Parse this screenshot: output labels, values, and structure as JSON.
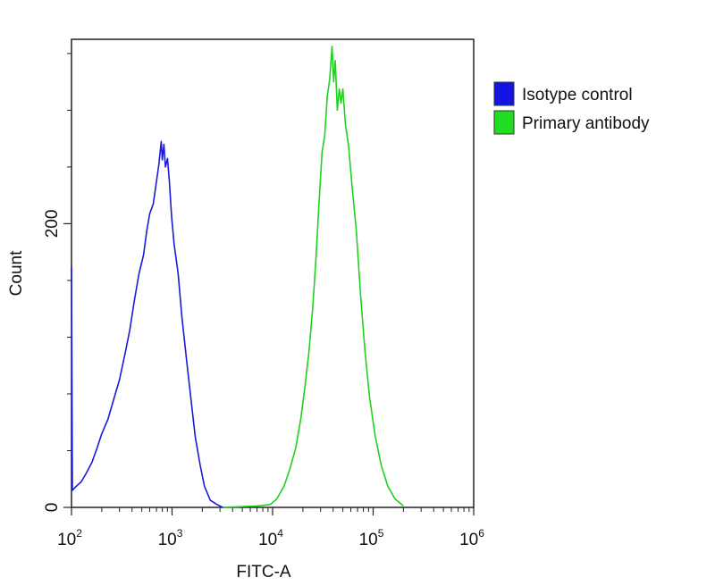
{
  "chart_data": {
    "type": "line",
    "xscale": "log",
    "xlim": [
      100,
      1000000
    ],
    "ylim": [
      0,
      330
    ],
    "xlabel": "FITC-A",
    "ylabel": "Count",
    "x_tick_labels": [
      {
        "value": 100,
        "base": "10",
        "exp": "2"
      },
      {
        "value": 1000,
        "base": "10",
        "exp": "3"
      },
      {
        "value": 10000,
        "base": "10",
        "exp": "4"
      },
      {
        "value": 100000,
        "base": "10",
        "exp": "5"
      },
      {
        "value": 1000000,
        "base": "10",
        "exp": "6"
      }
    ],
    "y_tick_labels": [
      {
        "value": 0,
        "label": "0"
      },
      {
        "value": 200,
        "label": "200"
      }
    ],
    "y_minor_ticks": [
      0,
      40,
      80,
      120,
      160,
      200,
      240,
      280,
      320
    ],
    "grid": false,
    "legend_position": "right",
    "series": [
      {
        "name": "Isotype control",
        "color": "#1a1adc",
        "swatch_color": "#1414e0",
        "points": [
          [
            100,
            170
          ],
          [
            102,
            12
          ],
          [
            112,
            15
          ],
          [
            125,
            18
          ],
          [
            140,
            24
          ],
          [
            160,
            32
          ],
          [
            180,
            42
          ],
          [
            200,
            52
          ],
          [
            230,
            62
          ],
          [
            260,
            75
          ],
          [
            300,
            90
          ],
          [
            340,
            108
          ],
          [
            380,
            125
          ],
          [
            420,
            145
          ],
          [
            470,
            165
          ],
          [
            520,
            178
          ],
          [
            560,
            195
          ],
          [
            600,
            207
          ],
          [
            650,
            214
          ],
          [
            700,
            230
          ],
          [
            740,
            242
          ],
          [
            780,
            258
          ],
          [
            800,
            245
          ],
          [
            830,
            256
          ],
          [
            860,
            240
          ],
          [
            900,
            246
          ],
          [
            940,
            230
          ],
          [
            990,
            205
          ],
          [
            1050,
            185
          ],
          [
            1150,
            165
          ],
          [
            1250,
            135
          ],
          [
            1400,
            103
          ],
          [
            1550,
            75
          ],
          [
            1700,
            50
          ],
          [
            1900,
            30
          ],
          [
            2100,
            15
          ],
          [
            2400,
            5
          ],
          [
            2800,
            2
          ],
          [
            3200,
            0
          ]
        ]
      },
      {
        "name": "Primary antibody",
        "color": "#1ed21e",
        "swatch_color": "#22dc22",
        "points": [
          [
            3200,
            0
          ],
          [
            7000,
            1
          ],
          [
            9500,
            2
          ],
          [
            11000,
            6
          ],
          [
            13000,
            15
          ],
          [
            15000,
            28
          ],
          [
            17000,
            42
          ],
          [
            19000,
            62
          ],
          [
            21000,
            85
          ],
          [
            23000,
            110
          ],
          [
            25000,
            140
          ],
          [
            27000,
            175
          ],
          [
            29000,
            215
          ],
          [
            31000,
            250
          ],
          [
            33000,
            262
          ],
          [
            35000,
            290
          ],
          [
            37000,
            302
          ],
          [
            39000,
            325
          ],
          [
            40500,
            300
          ],
          [
            42000,
            315
          ],
          [
            44000,
            280
          ],
          [
            46000,
            295
          ],
          [
            48000,
            285
          ],
          [
            50000,
            295
          ],
          [
            53000,
            270
          ],
          [
            57000,
            255
          ],
          [
            62000,
            225
          ],
          [
            68000,
            195
          ],
          [
            75000,
            150
          ],
          [
            83000,
            110
          ],
          [
            92000,
            78
          ],
          [
            105000,
            50
          ],
          [
            120000,
            30
          ],
          [
            140000,
            15
          ],
          [
            165000,
            6
          ],
          [
            200000,
            1
          ]
        ]
      }
    ]
  }
}
